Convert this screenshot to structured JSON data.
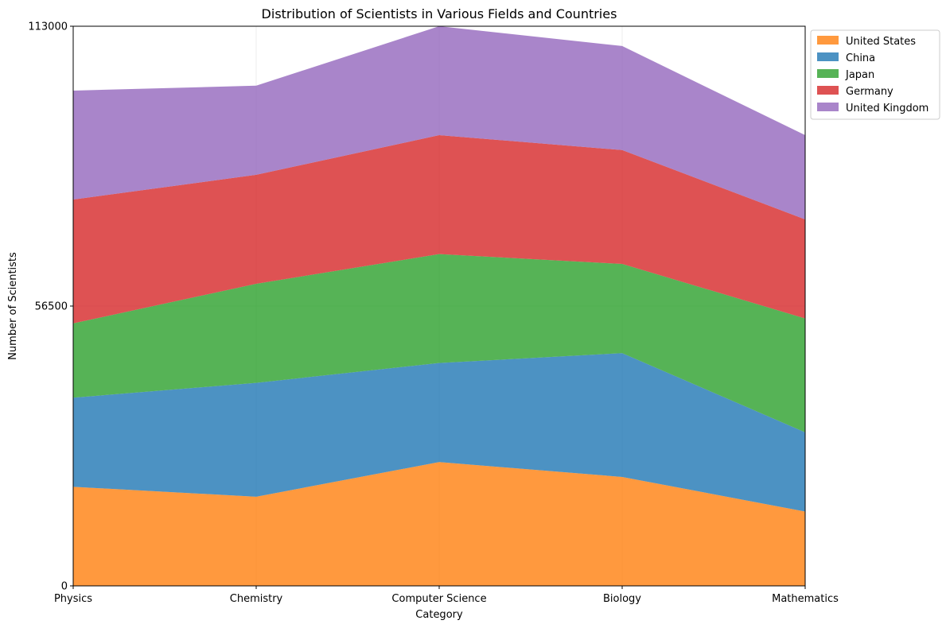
{
  "chart_data": {
    "type": "area",
    "stacked": true,
    "title": "Distribution of Scientists in Various Fields and Countries",
    "xlabel": "Category",
    "ylabel": "Number of Scientists",
    "categories": [
      "Physics",
      "Chemistry",
      "Computer Science",
      "Biology",
      "Mathematics"
    ],
    "ylim": [
      0,
      113000
    ],
    "yticks": [
      0,
      56500,
      113000
    ],
    "grid": true,
    "legend_position": "upper-right-outside",
    "series": [
      {
        "name": "United States",
        "color": "#ff7f0e",
        "values": [
          20000,
          18000,
          25000,
          22000,
          15000
        ]
      },
      {
        "name": "China",
        "color": "#1f77b4",
        "values": [
          18000,
          23000,
          20000,
          25000,
          16000
        ]
      },
      {
        "name": "Japan",
        "color": "#2ca02c",
        "values": [
          15000,
          20000,
          22000,
          18000,
          23000
        ]
      },
      {
        "name": "Germany",
        "color": "#d62728",
        "values": [
          25000,
          22000,
          24000,
          23000,
          20000
        ]
      },
      {
        "name": "United Kingdom",
        "color": "#9467bd",
        "values": [
          22000,
          18000,
          22000,
          21000,
          17000
        ]
      }
    ]
  }
}
